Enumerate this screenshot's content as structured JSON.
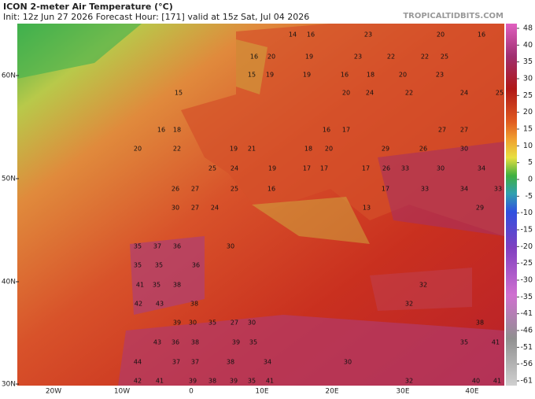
{
  "header": {
    "title": "ICON 2-meter Air Temperature (°C)",
    "subtitle": "Init: 12z Jun 27 2026   Forecast Hour: [171]   valid at 15z Sat, Jul 04 2026",
    "source": "TROPICALTIDBITS.COM"
  },
  "map": {
    "latitude_labels": [
      "60N",
      "50N",
      "40N",
      "30N"
    ],
    "longitude_labels": [
      "20W",
      "10W",
      "0",
      "10E",
      "20E",
      "30E",
      "40E"
    ],
    "temperature_labels": [
      14,
      16,
      23,
      20,
      16,
      16,
      20,
      19,
      23,
      22,
      22,
      25,
      15,
      19,
      19,
      16,
      18,
      20,
      23,
      15,
      20,
      24,
      22,
      24,
      25,
      16,
      18,
      16,
      17,
      27,
      27,
      20,
      22,
      19,
      21,
      18,
      20,
      29,
      26,
      30,
      25,
      24,
      19,
      17,
      17,
      17,
      26,
      33,
      30,
      34,
      26,
      27,
      25,
      16,
      17,
      33,
      34,
      33,
      30,
      27,
      24,
      13,
      29,
      35,
      37,
      36,
      30,
      35,
      35,
      36,
      41,
      35,
      38,
      32,
      42,
      43,
      38,
      32,
      39,
      30,
      35,
      27,
      30,
      38,
      43,
      36,
      38,
      39,
      35,
      35,
      41,
      44,
      37,
      37,
      38,
      34,
      30,
      42,
      41,
      39,
      38,
      39,
      35,
      41,
      32,
      40,
      41
    ]
  },
  "colorbar": {
    "ticks": [
      48,
      40,
      35,
      30,
      25,
      20,
      15,
      10,
      5,
      0,
      -5,
      -10,
      -15,
      -20,
      -25,
      -30,
      -35,
      -41,
      -46,
      -51,
      -56,
      -61
    ]
  }
}
